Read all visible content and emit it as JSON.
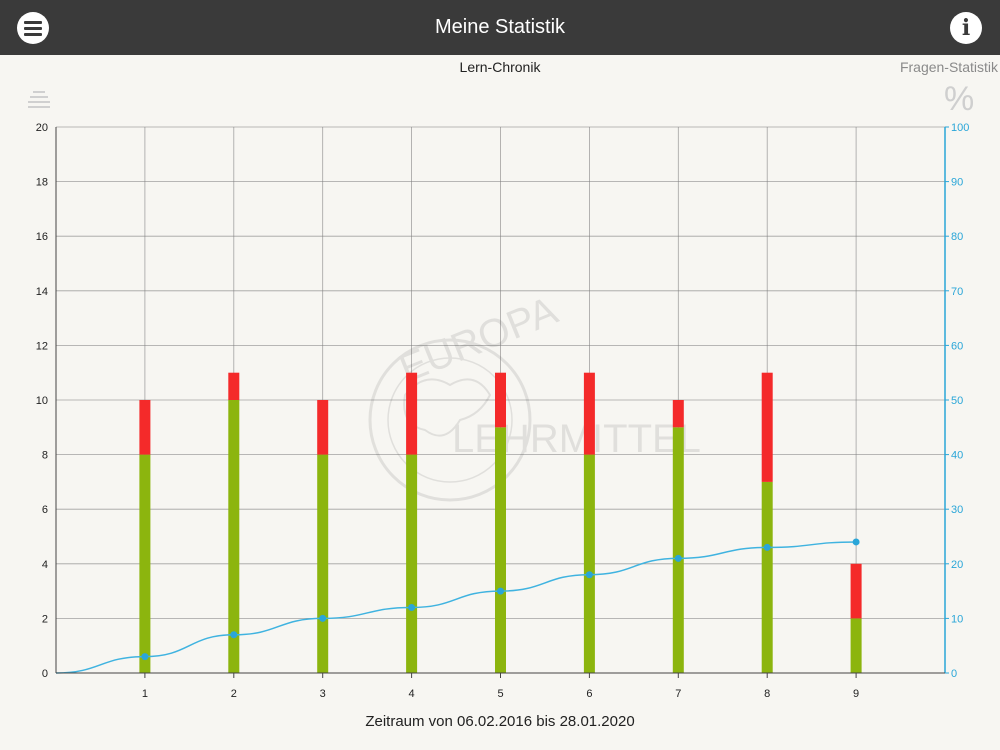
{
  "header": {
    "title": "Meine Statistik",
    "menu_icon": "menu-icon",
    "info_icon": "info-icon",
    "info_glyph": "i"
  },
  "tabs": {
    "active": "Lern-Chronik",
    "other": "Fragen-Statistik"
  },
  "toolbar": {
    "list_icon": "list-icon",
    "percent_icon": "percent-icon",
    "percent_glyph": "%"
  },
  "watermark": {
    "line1": "EUROPA",
    "line2": "LEHRMITTEL"
  },
  "footer": {
    "period": "Zeitraum von 06.02.2016 bis 28.01.2020"
  },
  "colors": {
    "correct": "#8cb50e",
    "wrong": "#f42a2a",
    "line": "#3fb3e0",
    "grid": "#7f7f7f",
    "right_axis": "#2aa6d8"
  },
  "chart_data": {
    "type": "bar",
    "categories": [
      "1",
      "2",
      "3",
      "4",
      "5",
      "6",
      "7",
      "8",
      "9"
    ],
    "series": [
      {
        "values": [
          8,
          10,
          8,
          8,
          9,
          8,
          9,
          7,
          2
        ],
        "color": "#8cb50e"
      },
      {
        "values": [
          2,
          1,
          2,
          3,
          2,
          3,
          1,
          4,
          2
        ],
        "color": "#f42a2a"
      }
    ],
    "line_series": {
      "x": [
        0,
        1,
        2,
        3,
        4,
        5,
        6,
        7,
        8,
        9
      ],
      "values": [
        0,
        3,
        7,
        10,
        12,
        15,
        18,
        21,
        23,
        24
      ],
      "axis": "right"
    },
    "y_left": {
      "ylim": [
        0,
        20
      ],
      "ticks": [
        "0",
        "2",
        "4",
        "6",
        "8",
        "10",
        "12",
        "14",
        "16",
        "18",
        "20"
      ]
    },
    "y_right": {
      "ylim": [
        0,
        100
      ],
      "ticks": [
        "0",
        "10",
        "20",
        "30",
        "40",
        "50",
        "60",
        "70",
        "80",
        "90",
        "100"
      ]
    },
    "stacked": true,
    "grid": true
  }
}
